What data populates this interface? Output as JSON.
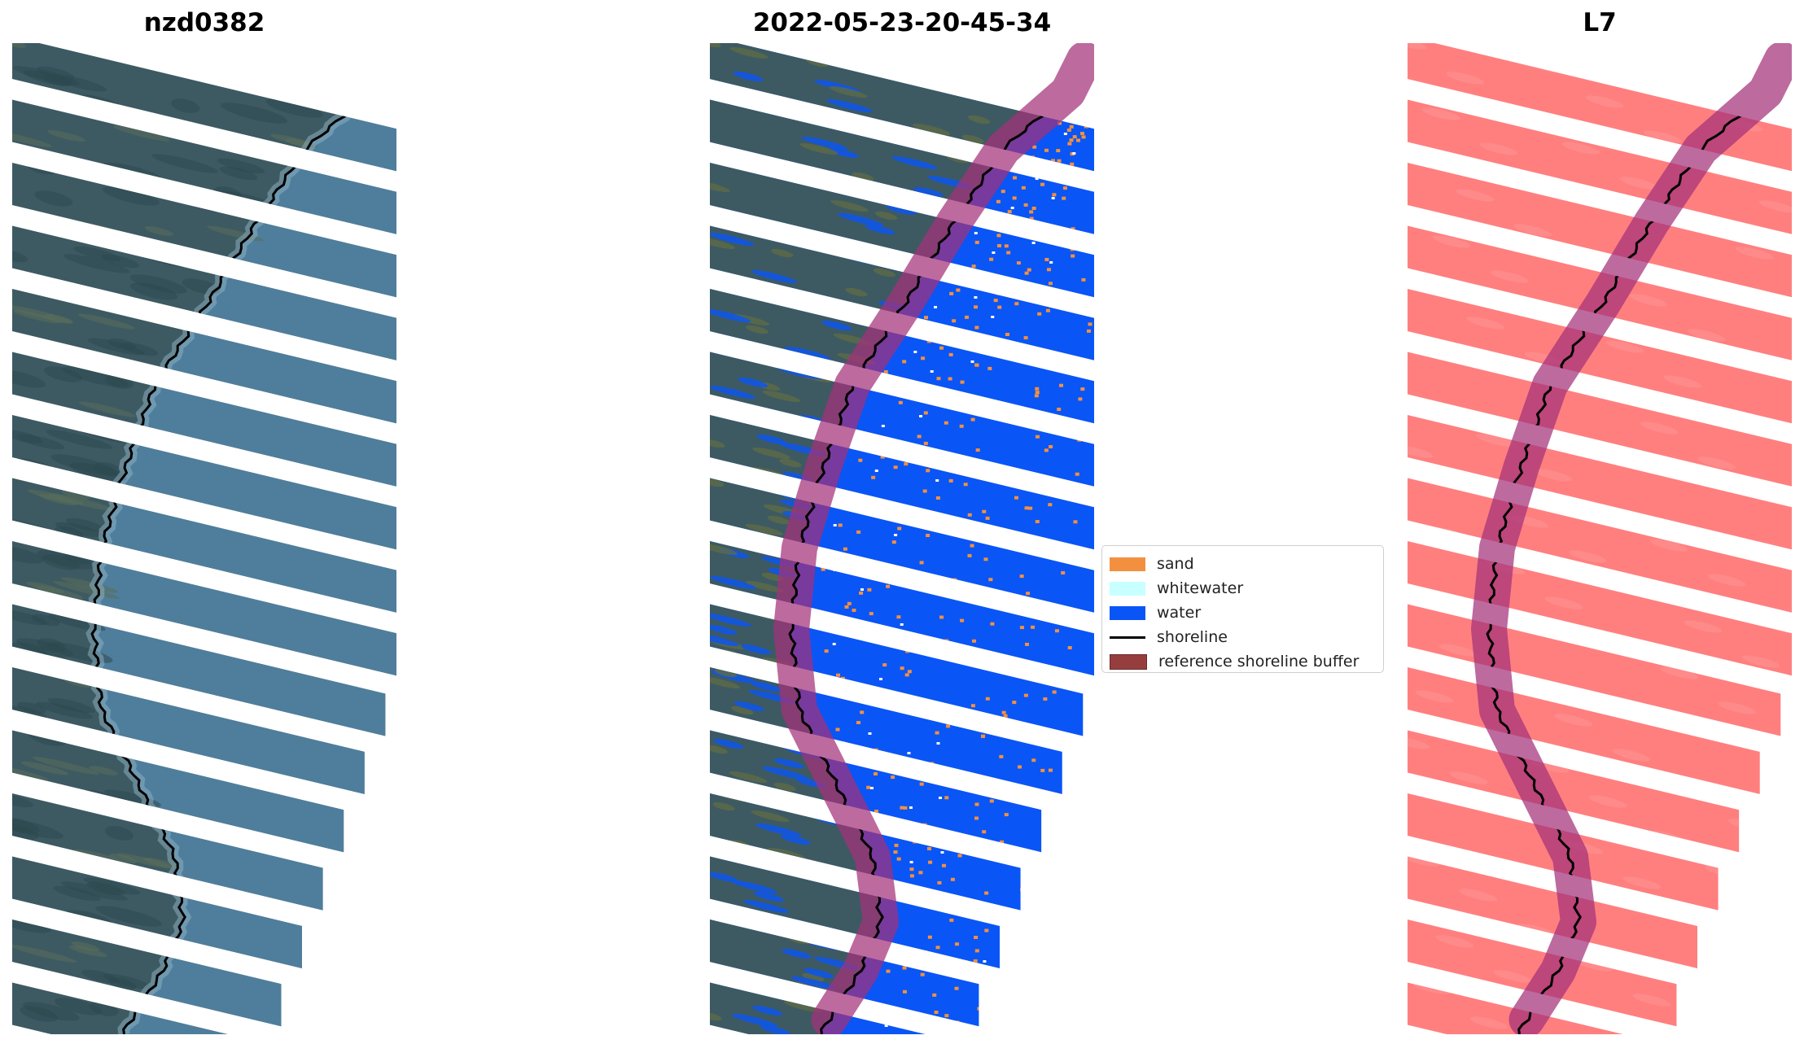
{
  "panels": [
    {
      "title": "nzd0382",
      "style": "rgb"
    },
    {
      "title": "2022-05-23-20-45-34",
      "style": "classified"
    },
    {
      "title": "L7",
      "style": "mask"
    }
  ],
  "legend": {
    "items": [
      {
        "label": "sand",
        "color": "#f39040",
        "kind": "patch"
      },
      {
        "label": "whitewater",
        "color": "#c8ffff",
        "kind": "patch"
      },
      {
        "label": "water",
        "color": "#0a55f5",
        "kind": "patch"
      },
      {
        "label": "shoreline",
        "color": "#000000",
        "kind": "line"
      },
      {
        "label": "reference shoreline buffer",
        "color": "#8b2a2a",
        "kind": "patch"
      }
    ]
  },
  "colors": {
    "land": "#3d5a63",
    "sea": "#4f7e9c",
    "mask": "#ff7f7f",
    "buffer": "#a3307a",
    "shoreline": "#000000"
  }
}
